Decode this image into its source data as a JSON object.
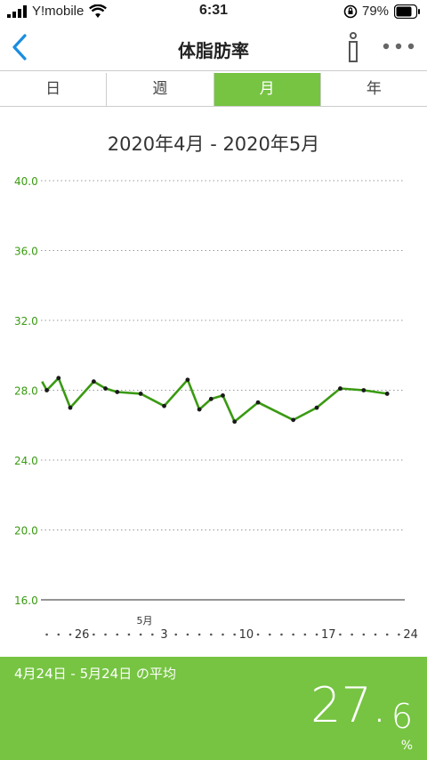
{
  "status_bar": {
    "carrier": "Y!mobile",
    "time": "6:31",
    "battery": "79%"
  },
  "nav": {
    "title": "体脂肪率"
  },
  "tabs": [
    {
      "label": "日",
      "active": false
    },
    {
      "label": "週",
      "active": false
    },
    {
      "label": "月",
      "active": true
    },
    {
      "label": "年",
      "active": false
    }
  ],
  "date_range": "2020年4月 - 2020年5月",
  "colors": {
    "accent": "#76c442",
    "line": "#3a9a12",
    "tick_label": "#3a9a12"
  },
  "chart_data": {
    "type": "line",
    "title": "",
    "xlabel": "",
    "ylabel": "",
    "ylim": [
      16.0,
      40.0
    ],
    "yticks": [
      "16.0",
      "20.0",
      "24.0",
      "28.0",
      "32.0",
      "36.0",
      "40.0"
    ],
    "xlim": [
      -1.5,
      29.5
    ],
    "xticks": [
      {
        "day": 2,
        "label": "26"
      },
      {
        "day": 9,
        "label": "3",
        "month": "5月"
      },
      {
        "day": 16,
        "label": "10"
      },
      {
        "day": 23,
        "label": "17"
      },
      {
        "day": 30,
        "label": "24"
      }
    ],
    "series": [
      {
        "name": "",
        "x": [
          -1.4,
          -1,
          0,
          1,
          3,
          4,
          5,
          7,
          9,
          11,
          12,
          13,
          14,
          15,
          17,
          20,
          22,
          24,
          26,
          28
        ],
        "y": [
          28.5,
          28.0,
          28.7,
          27.0,
          28.5,
          28.1,
          27.9,
          27.8,
          27.1,
          28.6,
          26.9,
          27.5,
          27.7,
          26.2,
          27.3,
          26.3,
          27.0,
          28.1,
          28.0,
          27.8
        ],
        "markers": [
          false,
          true,
          true,
          true,
          true,
          true,
          true,
          true,
          true,
          true,
          true,
          true,
          true,
          true,
          true,
          true,
          true,
          true,
          true,
          true
        ]
      }
    ]
  },
  "footer": {
    "period_label": "4月24日 - 5月24日 の平均",
    "average_int": "27.",
    "average_dec": "6",
    "unit": "%"
  }
}
